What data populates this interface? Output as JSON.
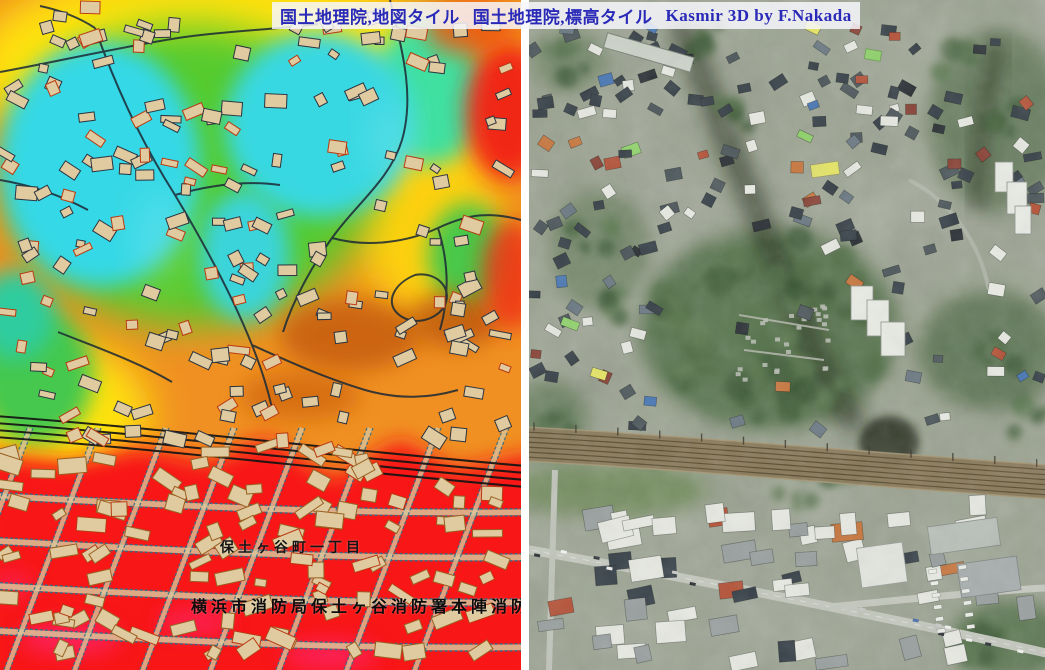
{
  "banner": {
    "map_credit": "国土地理院,地図タイル",
    "dem_credit": "国土地理院,標高タイル",
    "renderer_credit": "Kasmir 3D by F.Nakada"
  },
  "left_map": {
    "district_label": "保土ヶ谷町一丁目",
    "fire_station_label": "横浜市消防局保土ヶ谷消防署本陣消防"
  },
  "colors": {
    "banner_text": "#2a2ab8",
    "elevation": {
      "cyan": "#35d8e6",
      "mint": "#3fe0a0",
      "green": "#55cb2e",
      "yellow": "#ffe20a",
      "orange": "#f09022",
      "deep_orange": "#c05708",
      "red": "#f81418",
      "magenta": "#ff2e9e"
    },
    "map_building_fill": "#dfcb9f",
    "map_building_stroke_dark": "#2c3440",
    "map_building_stroke_red": "#b93a12",
    "map_building_stroke_tan": "#9a6022",
    "map_road_dark": "#1b2935",
    "map_road_teal": "#2e7088",
    "rail_black": "#141414",
    "aerial": {
      "base": "#9aa28f",
      "tree_dark": "#42603b",
      "tree": "#53714a",
      "grass": "#6e8a58",
      "roof_dark": "#39424a",
      "roof_slate": "#4f595d",
      "roof_gray": "#6c7a84",
      "roof_white": "#e6e8e1",
      "roof_red": "#b5543a",
      "roof_blue": "#4a78b4",
      "roof_yellow": "#e4e468",
      "roof_green": "#90d26c",
      "roof_orange": "#c87840",
      "road": "#c4c8be",
      "rail_band": "#8a795a",
      "rail_line": "#554a30",
      "shadow": "#18220f",
      "cemetery": "#b8bdb2"
    }
  }
}
